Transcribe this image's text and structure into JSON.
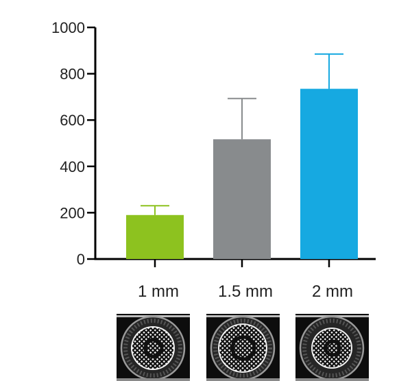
{
  "chart_data": {
    "type": "bar",
    "categories": [
      "1 mm",
      "1.5 mm",
      "2 mm"
    ],
    "values": [
      190,
      517,
      735
    ],
    "error_upper": [
      230,
      693,
      885
    ],
    "colors": [
      "#8dc21f",
      "#888b8d",
      "#16a9e1"
    ],
    "ylim": [
      0,
      1000
    ],
    "yticks": [
      "0",
      "200",
      "400",
      "600",
      "800",
      "1000"
    ],
    "title": "",
    "xlabel": "",
    "ylabel": "",
    "grid": false
  },
  "images": [
    {
      "category": "1 mm",
      "description-icon": "scaffold-micrograph-icon"
    },
    {
      "category": "1.5 mm",
      "description-icon": "scaffold-micrograph-icon"
    },
    {
      "category": "2 mm",
      "description-icon": "scaffold-micrograph-icon"
    }
  ]
}
